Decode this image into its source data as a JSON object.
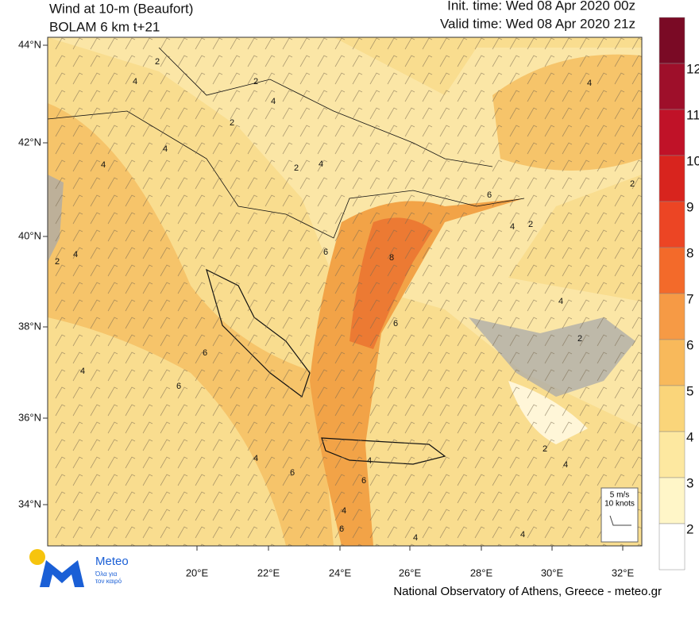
{
  "header": {
    "title": "Wind at 10-m (Beaufort)",
    "subtitle": "BOLAM 6 km t+21",
    "init_time": "Init. time: Wed 08 Apr 2020 00z",
    "valid_time": "Valid time: Wed 08 Apr 2020 21z"
  },
  "map": {
    "lat_labels": [
      "44°N",
      "42°N",
      "40°N",
      "38°N",
      "36°N",
      "34°N"
    ],
    "lon_labels": [
      "20°E",
      "22°E",
      "24°E",
      "26°E",
      "28°E",
      "30°E",
      "32°E"
    ],
    "contour_labels": [
      "2",
      "4",
      "2",
      "4",
      "4",
      "4",
      "2",
      "4",
      "4",
      "2",
      "4",
      "2",
      "6",
      "8",
      "6",
      "4",
      "6",
      "6",
      "4",
      "2",
      "4",
      "6",
      "4",
      "6",
      "4",
      "6",
      "2",
      "4",
      "4",
      "4",
      "6",
      "4",
      "2",
      "2"
    ]
  },
  "colorbar": {
    "levels": [
      12,
      11,
      10,
      9,
      8,
      7,
      6,
      5,
      4,
      3,
      2
    ],
    "colors": [
      "#7a0a25",
      "#9e0f2a",
      "#c01228",
      "#d8241e",
      "#ec4524",
      "#f36a2a",
      "#f69a45",
      "#f8b95b",
      "#fad57a",
      "#fde8a0",
      "#fff6c8",
      "#ffffff"
    ]
  },
  "legend_box": {
    "speed": "5 m/s",
    "knots": "10 knots"
  },
  "logo": {
    "name": "Meteo",
    "tagline_1": "Όλα για",
    "tagline_2": "τον καιρό"
  },
  "footer": "National Observatory of Athens, Greece - meteo.gr"
}
